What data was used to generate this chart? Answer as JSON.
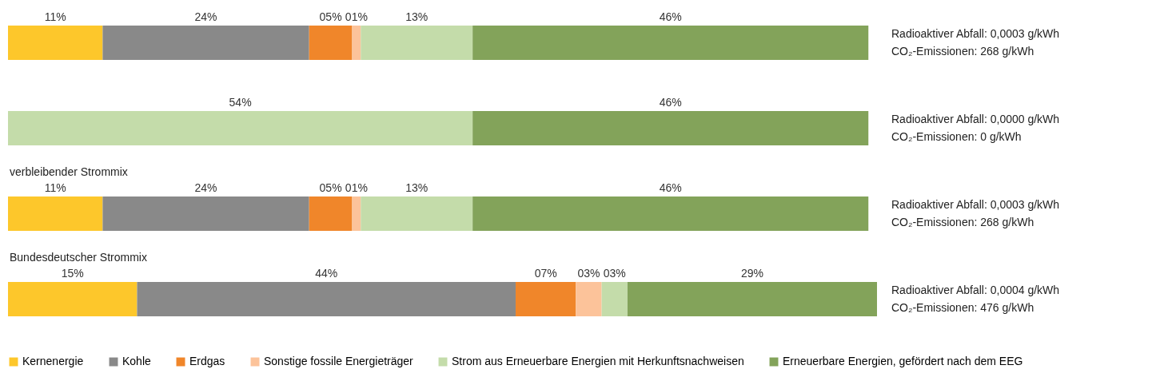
{
  "chart_data": {
    "type": "bar",
    "orientation": "horizontal",
    "stacked": true,
    "legend": "bottom",
    "categories": [
      null,
      null,
      "verbleibender Strommix",
      "Bundesdeutscher Strommix"
    ],
    "series": [
      {
        "name": "Kernenergie",
        "color": "#fdc72b",
        "values": [
          11,
          0,
          11,
          15
        ],
        "value_labels": [
          "11%",
          null,
          "11%",
          "15%"
        ]
      },
      {
        "name": "Kohle",
        "color": "#898989",
        "values": [
          24,
          0,
          24,
          44
        ],
        "value_labels": [
          "24%",
          null,
          "24%",
          "44%"
        ]
      },
      {
        "name": "Erdgas",
        "color": "#f0862a",
        "values": [
          5,
          0,
          5,
          7
        ],
        "value_labels": [
          "05%",
          null,
          "05%",
          "07%"
        ]
      },
      {
        "name": "Sonstige fossile Energieträger",
        "color": "#fcc39a",
        "values": [
          1,
          0,
          1,
          3
        ],
        "value_labels": [
          "01%",
          null,
          "01%",
          "03%"
        ]
      },
      {
        "name": "Strom aus Erneuerbare Energien mit Herkunftsnachweisen",
        "color": "#c4dcaa",
        "values": [
          13,
          54,
          13,
          3
        ],
        "value_labels": [
          "13%",
          "54%",
          "13%",
          "03%"
        ]
      },
      {
        "name": "Erneuerbare Energien, gefördert nach dem EEG",
        "color": "#83a35a",
        "values": [
          46,
          46,
          46,
          29
        ],
        "value_labels": [
          "46%",
          "46%",
          "46%",
          "29%"
        ]
      }
    ],
    "annotations": [
      "Radioaktiver Abfall:   0,0003 g/kWh",
      "CO₂-Emissionen:           268 g/kWh",
      "Radioaktiver Abfall:   0,0000 g/kWh",
      "CO₂-Emissionen:               0 g/kWh",
      "Radioaktiver Abfall:   0,0003 g/kWh",
      "CO₂-Emissionen:           268 g/kWh",
      "Radioaktiver Abfall:   0,0004 g/kWh",
      "CO₂-Emissionen:           476 g/kWh"
    ]
  }
}
